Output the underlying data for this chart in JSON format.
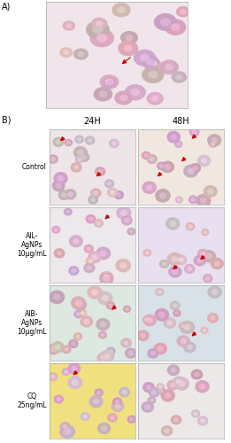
{
  "title_A": "A)",
  "title_B": "B)",
  "col_headers": [
    "24H",
    "48H"
  ],
  "row_labels": [
    "Control",
    "AIL-\nAgNPs\n10μg/mL",
    "AIB-\nAgNPs\n10μg/mL",
    "CQ\n25ng/mL"
  ],
  "panel_A_bg": "#f0e5ea",
  "panel_colors": [
    [
      "#ede5e8",
      "#f0e8e0"
    ],
    [
      "#ede8ec",
      "#e8e0f0"
    ],
    [
      "#dde8e0",
      "#d8e0e8"
    ],
    [
      "#f0e080",
      "#ece8e8"
    ]
  ],
  "arrow_color": "#cc0000",
  "text_color": "#000000",
  "bg_color": "#ffffff",
  "label_fontsize": 5.5,
  "header_fontsize": 7,
  "section_label_fontsize": 7
}
